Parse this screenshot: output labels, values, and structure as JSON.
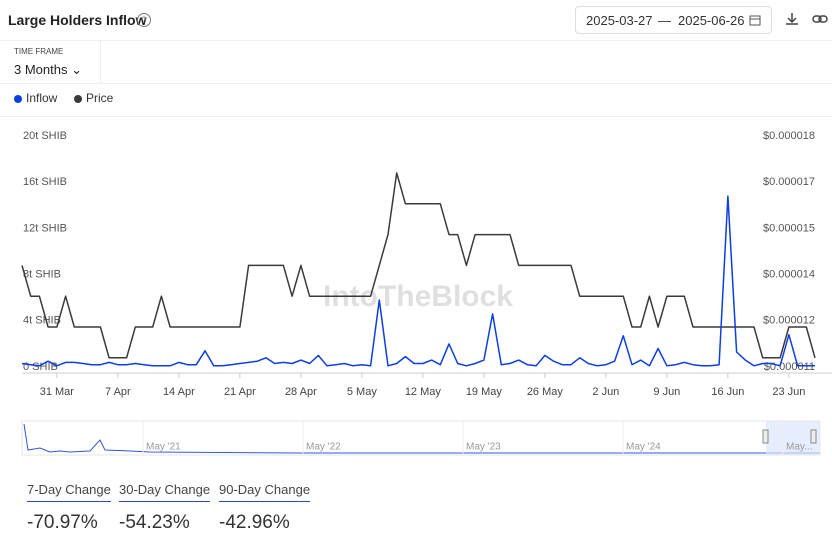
{
  "header": {
    "title": "Large Holders Inflow",
    "date_from": "2025-03-27",
    "date_separator": "—",
    "date_to": "2025-06-26"
  },
  "timeframe": {
    "label": "TIME FRAME",
    "value": "3 Months"
  },
  "watermark": "IntoTheBlock",
  "navigator": {
    "labels": [
      "May '21",
      "May '22",
      "May '23",
      "May '24",
      "May..."
    ]
  },
  "stats": [
    {
      "label": "7-Day Change",
      "value": "-70.97%"
    },
    {
      "label": "30-Day Change",
      "value": "-54.23%"
    },
    {
      "label": "90-Day Change",
      "value": "-42.96%"
    }
  ],
  "chart_data": {
    "type": "line",
    "categories": [
      null,
      null,
      null,
      null,
      "31 Mar",
      null,
      null,
      null,
      null,
      null,
      null,
      "7 Apr",
      null,
      null,
      null,
      null,
      null,
      null,
      "14 Apr",
      null,
      null,
      null,
      null,
      null,
      null,
      "21 Apr",
      null,
      null,
      null,
      null,
      null,
      null,
      "28 Apr",
      null,
      null,
      null,
      null,
      null,
      null,
      "5 May",
      null,
      null,
      null,
      null,
      null,
      null,
      "12 May",
      null,
      null,
      null,
      null,
      null,
      null,
      "19 May",
      null,
      null,
      null,
      null,
      null,
      null,
      "26 May",
      null,
      null,
      null,
      null,
      null,
      null,
      "2 Jun",
      null,
      null,
      null,
      null,
      null,
      null,
      "9 Jun",
      null,
      null,
      null,
      null,
      null,
      null,
      "16 Jun",
      null,
      null,
      null,
      null,
      null,
      null,
      "23 Jun",
      null,
      null,
      null
    ],
    "series": [
      {
        "name": "Inflow",
        "color": "#0d3ee0",
        "axis": "y",
        "values": [
          0.3,
          0.2,
          0.1,
          0.5,
          0.1,
          0.4,
          0.4,
          0.3,
          0.2,
          0.2,
          0.4,
          0.2,
          0.2,
          0.3,
          0.2,
          0.1,
          0.1,
          0.1,
          0.4,
          0.2,
          0.2,
          1.4,
          0.1,
          0.1,
          0.2,
          0.3,
          0.4,
          0.5,
          0.8,
          0.3,
          0.4,
          0.3,
          0.6,
          0.3,
          1.0,
          0.1,
          0.2,
          0.3,
          0.1,
          0.2,
          0.1,
          5.8,
          0.1,
          0.3,
          0.9,
          0.3,
          0.3,
          0.6,
          0.2,
          2.0,
          0.3,
          0.1,
          0.3,
          0.6,
          4.6,
          0.2,
          0.3,
          0.6,
          0.2,
          0.1,
          1.0,
          0.5,
          0.2,
          0.2,
          0.8,
          0.3,
          0.1,
          0.2,
          0.5,
          2.7,
          0.2,
          0.6,
          0.1,
          1.6,
          0.1,
          0.2,
          0.4,
          0.2,
          0.1,
          0.1,
          0.2,
          14.8,
          1.3,
          0.6,
          0.1,
          0.3,
          0.3,
          0.1,
          2.8,
          0.1,
          0.1,
          0.1
        ]
      },
      {
        "name": "Price",
        "color": "#3a3a3a",
        "axis": "y2",
        "values": [
          1.39e-05,
          1.29e-05,
          1.29e-05,
          1.19e-05,
          1.19e-05,
          1.29e-05,
          1.19e-05,
          1.19e-05,
          1.19e-05,
          1.19e-05,
          1.09e-05,
          1.09e-05,
          1.09e-05,
          1.19e-05,
          1.19e-05,
          1.19e-05,
          1.29e-05,
          1.19e-05,
          1.19e-05,
          1.19e-05,
          1.19e-05,
          1.19e-05,
          1.19e-05,
          1.19e-05,
          1.19e-05,
          1.19e-05,
          1.39e-05,
          1.39e-05,
          1.39e-05,
          1.39e-05,
          1.39e-05,
          1.29e-05,
          1.39e-05,
          1.29e-05,
          1.29e-05,
          1.29e-05,
          1.29e-05,
          1.29e-05,
          1.29e-05,
          1.29e-05,
          1.29e-05,
          1.39e-05,
          1.49e-05,
          1.69e-05,
          1.59e-05,
          1.59e-05,
          1.59e-05,
          1.59e-05,
          1.59e-05,
          1.49e-05,
          1.49e-05,
          1.39e-05,
          1.49e-05,
          1.49e-05,
          1.49e-05,
          1.49e-05,
          1.49e-05,
          1.39e-05,
          1.39e-05,
          1.39e-05,
          1.39e-05,
          1.39e-05,
          1.39e-05,
          1.39e-05,
          1.29e-05,
          1.29e-05,
          1.29e-05,
          1.29e-05,
          1.29e-05,
          1.29e-05,
          1.19e-05,
          1.19e-05,
          1.29e-05,
          1.19e-05,
          1.29e-05,
          1.29e-05,
          1.29e-05,
          1.19e-05,
          1.19e-05,
          1.19e-05,
          1.19e-05,
          1.19e-05,
          1.19e-05,
          1.19e-05,
          1.19e-05,
          1.09e-05,
          1.09e-05,
          1.09e-05,
          1.19e-05,
          1.19e-05,
          1.19e-05,
          1.09e-05
        ]
      }
    ],
    "ylim": [
      0,
      20
    ],
    "yticks": [
      {
        "value": 0,
        "label": "0 SHIB"
      },
      {
        "value": 4,
        "label": "4t SHIB"
      },
      {
        "value": 8,
        "label": "8t SHIB"
      },
      {
        "value": 12,
        "label": "12t SHIB"
      },
      {
        "value": 16,
        "label": "16t SHIB"
      },
      {
        "value": 20,
        "label": "20t SHIB"
      }
    ],
    "y2lim": [
      1.06e-05,
      1.81e-05
    ],
    "y2ticks": [
      {
        "value": 1.06e-05,
        "label": "$0.000011"
      },
      {
        "value": 1.21e-05,
        "label": "$0.000012"
      },
      {
        "value": 1.36e-05,
        "label": "$0.000014"
      },
      {
        "value": 1.51e-05,
        "label": "$0.000015"
      },
      {
        "value": 1.66e-05,
        "label": "$0.000017"
      },
      {
        "value": 1.81e-05,
        "label": "$0.000018"
      }
    ],
    "grid": false
  }
}
